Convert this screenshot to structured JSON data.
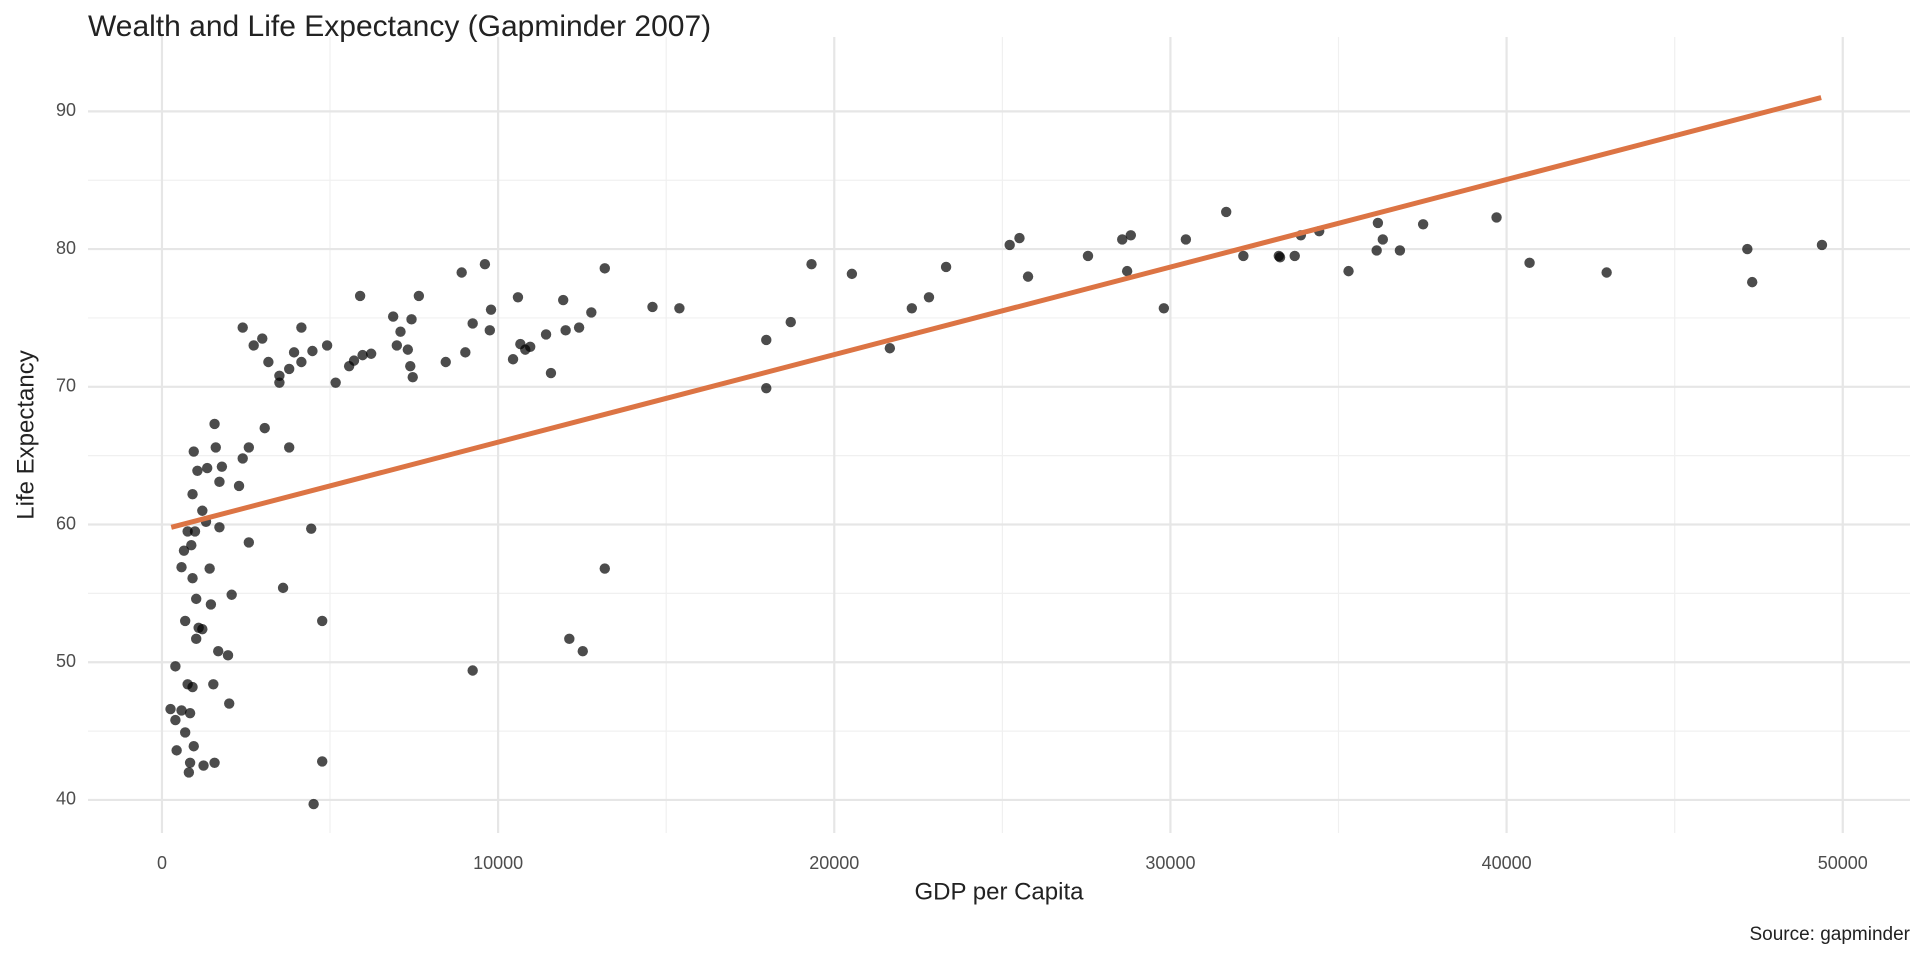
{
  "chart_data": {
    "type": "scatter",
    "title": "Wealth and Life Expectancy (Gapminder 2007)",
    "x_label": "GDP per Capita",
    "y_label": "Life Expectancy",
    "caption": "Source: gapminder",
    "xlim": [
      -2200,
      52000
    ],
    "ylim": [
      37.6,
      95.4
    ],
    "xticks": [
      0,
      10000,
      20000,
      30000,
      40000,
      50000
    ],
    "yticks": [
      40,
      50,
      60,
      70,
      80,
      90
    ],
    "grid": true,
    "point_color": "#000000",
    "point_opacity": 0.7,
    "x": [
      255,
      400,
      400,
      437,
      582,
      582,
      655,
      691,
      691,
      764,
      764,
      800,
      837,
      837,
      873,
      910,
      910,
      910,
      946,
      946,
      983,
      1019,
      1019,
      1055,
      1092,
      1201,
      1201,
      1237,
      1310,
      1346,
      1419,
      1456,
      1528,
      1565,
      1565,
      1601,
      1674,
      1710,
      1710,
      1783,
      1965,
      2001,
      2074,
      2293,
      2402,
      2402,
      2584,
      2584,
      2729,
      2984,
      3057,
      3166,
      3494,
      3494,
      3603,
      3785,
      3785,
      3930,
      4148,
      4148,
      4440,
      4476,
      4512,
      4767,
      4767,
      4913,
      5167,
      5568,
      5713,
      5895,
      5968,
      6223,
      6878,
      6987,
      7096,
      7314,
      7387,
      7424,
      7460,
      7642,
      8442,
      8916,
      9025,
      9243,
      9243,
      9607,
      9753,
      9789,
      10444,
      10590,
      10662,
      10808,
      10954,
      11426,
      11572,
      11936,
      12009,
      12118,
      12409,
      12518,
      12773,
      13173,
      13173,
      14592,
      15393,
      17977,
      17977,
      18705,
      19323,
      20524,
      21653,
      22307,
      22817,
      23326,
      25218,
      25509,
      25764,
      27547,
      28566,
      28712,
      28821,
      29804,
      30459,
      31659,
      32169,
      33224,
      33260,
      33697,
      33879,
      34425,
      35298,
      36135,
      36171,
      36317,
      36826,
      37517,
      39701,
      40683,
      42976,
      47161,
      47306,
      49381
    ],
    "y": [
      46.6,
      45.8,
      49.7,
      43.6,
      46.5,
      56.9,
      58.1,
      44.9,
      53.0,
      59.5,
      48.4,
      42.0,
      42.7,
      46.3,
      58.5,
      48.2,
      62.2,
      56.1,
      65.3,
      43.9,
      59.5,
      54.6,
      51.7,
      63.9,
      52.5,
      52.4,
      61.0,
      42.5,
      60.2,
      64.1,
      56.8,
      54.2,
      48.4,
      42.7,
      67.3,
      65.6,
      50.8,
      59.8,
      63.1,
      64.2,
      50.5,
      47.0,
      54.9,
      62.8,
      74.3,
      64.8,
      65.6,
      58.7,
      73.0,
      73.5,
      67.0,
      71.8,
      70.8,
      70.3,
      55.4,
      71.3,
      65.6,
      72.5,
      71.8,
      74.3,
      59.7,
      72.6,
      39.7,
      53.0,
      42.8,
      73.0,
      70.3,
      71.5,
      71.9,
      76.6,
      72.3,
      72.4,
      75.1,
      73.0,
      74.0,
      72.7,
      71.5,
      74.9,
      70.7,
      76.6,
      71.8,
      78.3,
      72.5,
      49.4,
      74.6,
      78.9,
      74.1,
      75.6,
      72.0,
      76.5,
      73.1,
      72.7,
      72.9,
      73.8,
      71.0,
      76.3,
      74.1,
      51.7,
      74.3,
      50.8,
      75.4,
      56.8,
      78.6,
      75.8,
      75.7,
      73.4,
      69.9,
      74.7,
      78.9,
      78.2,
      72.8,
      75.7,
      76.5,
      78.7,
      80.3,
      80.8,
      78.0,
      79.5,
      80.7,
      78.4,
      81.0,
      75.7,
      80.7,
      82.7,
      79.5,
      79.5,
      79.4,
      79.5,
      81.0,
      81.3,
      78.4,
      79.9,
      81.9,
      80.7,
      79.9,
      81.8,
      82.3,
      79.0,
      78.3,
      80.0,
      77.6,
      80.3
    ],
    "trend": {
      "x": [
        277,
        49357
      ],
      "y": [
        59.8,
        91.0
      ],
      "color": "#dc7444"
    }
  }
}
